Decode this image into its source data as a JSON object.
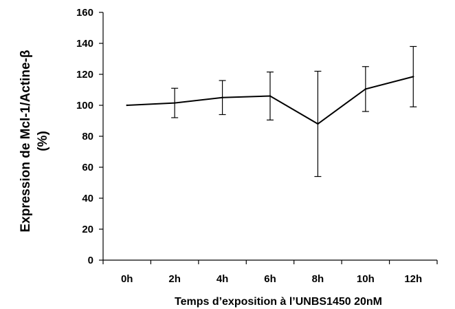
{
  "chart_data": {
    "type": "line",
    "title": "",
    "xlabel": "Temps d’exposition à l’UNBS1450 20nM",
    "ylabel_lines": [
      "Expression de Mcl-1/Actine-β",
      "(%)"
    ],
    "categories": [
      "0h",
      "2h",
      "4h",
      "6h",
      "8h",
      "10h",
      "12h"
    ],
    "series": [
      {
        "values": [
          100,
          101.5,
          105,
          106,
          88,
          110.5,
          118.5
        ],
        "error": [
          0,
          9.5,
          11,
          15.5,
          34,
          14.5,
          19.5
        ]
      }
    ],
    "ylim": [
      0,
      160
    ],
    "yticks": [
      0,
      20,
      40,
      60,
      80,
      100,
      120,
      140,
      160
    ],
    "grid": false,
    "legend": "none",
    "line_color": "#000000"
  }
}
